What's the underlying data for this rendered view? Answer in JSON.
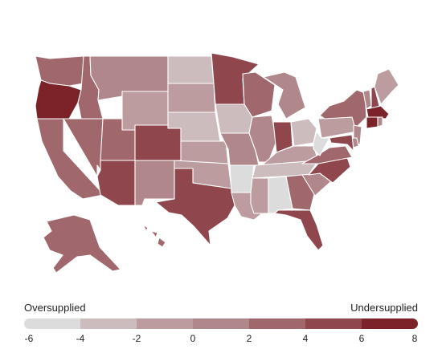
{
  "legend": {
    "left_label": "Oversupplied",
    "right_label": "Undersupplied",
    "ticks": [
      "-6",
      "-4",
      "-2",
      "0",
      "2",
      "4",
      "6",
      "8"
    ],
    "colors": [
      "#dcdcdc",
      "#cdbcbe",
      "#bc9c9f",
      "#b0888b",
      "#a0686d",
      "#8f474d",
      "#7b2328"
    ]
  },
  "map": {
    "states": [
      {
        "id": "WA",
        "level": 4
      },
      {
        "id": "OR",
        "level": 6
      },
      {
        "id": "CA",
        "level": 4
      },
      {
        "id": "ID",
        "level": 4
      },
      {
        "id": "NV",
        "level": 4
      },
      {
        "id": "MT",
        "level": 3
      },
      {
        "id": "WY",
        "level": 2
      },
      {
        "id": "UT",
        "level": 4
      },
      {
        "id": "AZ",
        "level": 5
      },
      {
        "id": "CO",
        "level": 5
      },
      {
        "id": "NM",
        "level": 3
      },
      {
        "id": "ND",
        "level": 1
      },
      {
        "id": "SD",
        "level": 2
      },
      {
        "id": "NE",
        "level": 1
      },
      {
        "id": "KS",
        "level": 2
      },
      {
        "id": "OK",
        "level": 2
      },
      {
        "id": "TX",
        "level": 5
      },
      {
        "id": "MN",
        "level": 5
      },
      {
        "id": "IA",
        "level": 1
      },
      {
        "id": "MO",
        "level": 3
      },
      {
        "id": "AR",
        "level": 0
      },
      {
        "id": "LA",
        "level": 2
      },
      {
        "id": "WI",
        "level": 4
      },
      {
        "id": "IL",
        "level": 3
      },
      {
        "id": "MI",
        "level": 3
      },
      {
        "id": "IN",
        "level": 5
      },
      {
        "id": "OH",
        "level": 1
      },
      {
        "id": "KY",
        "level": 2
      },
      {
        "id": "TN",
        "level": 1
      },
      {
        "id": "MS",
        "level": 2
      },
      {
        "id": "AL",
        "level": 0
      },
      {
        "id": "GA",
        "level": 4
      },
      {
        "id": "FL",
        "level": 5
      },
      {
        "id": "SC",
        "level": 3
      },
      {
        "id": "NC",
        "level": 5
      },
      {
        "id": "VA",
        "level": 4
      },
      {
        "id": "WV",
        "level": 0
      },
      {
        "id": "PA",
        "level": 2
      },
      {
        "id": "NY",
        "level": 4
      },
      {
        "id": "VT",
        "level": 3
      },
      {
        "id": "NH",
        "level": 5
      },
      {
        "id": "ME",
        "level": 2
      },
      {
        "id": "MA",
        "level": 6
      },
      {
        "id": "CT",
        "level": 6
      },
      {
        "id": "RI",
        "level": 3
      },
      {
        "id": "NJ",
        "level": 3
      },
      {
        "id": "DE",
        "level": 3
      },
      {
        "id": "MD",
        "level": 5
      },
      {
        "id": "AK",
        "level": 4
      },
      {
        "id": "HI",
        "level": 4
      }
    ]
  }
}
